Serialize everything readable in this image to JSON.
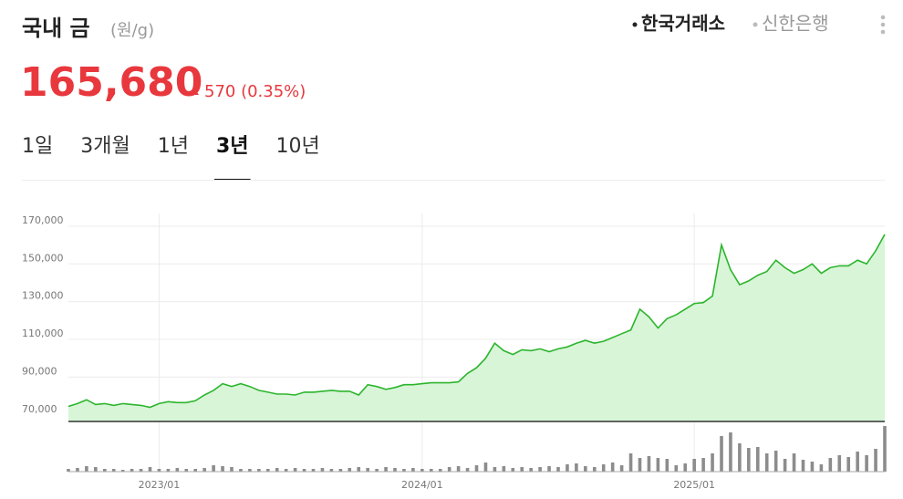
{
  "header": {
    "title": "국내 금",
    "unit": "(원/g)",
    "sources": [
      "한국거래소",
      "신한은행"
    ],
    "active_source": 0,
    "price": "165,680",
    "change": "570 (0.35%)"
  },
  "tabs": {
    "items": [
      "1일",
      "3개월",
      "1년",
      "3년",
      "10년"
    ],
    "selected": 3
  },
  "chart_data": {
    "type": "line",
    "categories": [
      null,
      null,
      null,
      null,
      null,
      null,
      null,
      null,
      null,
      null,
      "2023/01",
      null,
      null,
      null,
      null,
      null,
      null,
      null,
      null,
      null,
      null,
      null,
      null,
      null,
      null,
      null,
      null,
      null,
      null,
      null,
      null,
      null,
      null,
      null,
      null,
      null,
      null,
      null,
      null,
      "2024/01",
      null,
      null,
      null,
      null,
      null,
      null,
      null,
      null,
      null,
      null,
      null,
      null,
      null,
      null,
      null,
      null,
      null,
      null,
      null,
      null,
      null,
      null,
      null,
      null,
      null,
      null,
      null,
      null,
      null,
      "2025/01",
      null,
      null,
      null,
      null,
      null,
      null,
      null,
      null,
      null,
      null,
      null,
      null,
      null,
      null,
      null,
      null,
      null,
      null,
      null,
      null,
      null
    ],
    "series": [
      {
        "color": "#2db52d",
        "fill_color": "#d8f5d8",
        "values": [
          74500,
          76000,
          78000,
          75500,
          76000,
          75000,
          76000,
          75500,
          75000,
          74000,
          76000,
          77000,
          76500,
          76500,
          77500,
          80500,
          83000,
          86500,
          85000,
          86500,
          85000,
          83000,
          82000,
          81000,
          81000,
          80500,
          82000,
          82000,
          82500,
          83000,
          82500,
          82500,
          80500,
          86000,
          85000,
          83500,
          84500,
          86000,
          86000,
          86500,
          87000,
          87000,
          87000,
          87500,
          92000,
          95000,
          100000,
          108000,
          104000,
          102000,
          104500,
          104000,
          105000,
          103500,
          105000,
          106000,
          108000,
          109500,
          108000,
          109000,
          111000,
          113000,
          115000,
          126000,
          122000,
          116000,
          121000,
          123000,
          126000,
          129000,
          129500,
          133000,
          160000,
          147000,
          139000,
          141000,
          144000,
          146000,
          152000,
          148000,
          145000,
          147000,
          150000,
          145000,
          148000,
          149000,
          149000,
          152000,
          150000,
          157000,
          165680
        ]
      },
      {
        "type": "bar",
        "axis": "y2",
        "color": "#8c8c8c",
        "values": [
          6,
          8,
          12,
          10,
          6,
          6,
          4,
          6,
          6,
          10,
          6,
          6,
          8,
          6,
          6,
          8,
          14,
          12,
          10,
          6,
          6,
          6,
          6,
          8,
          6,
          8,
          6,
          6,
          8,
          6,
          6,
          8,
          10,
          8,
          6,
          10,
          8,
          6,
          8,
          6,
          6,
          6,
          10,
          12,
          8,
          14,
          20,
          10,
          12,
          8,
          10,
          8,
          10,
          12,
          10,
          16,
          18,
          12,
          10,
          16,
          20,
          14,
          40,
          30,
          34,
          30,
          28,
          14,
          18,
          28,
          30,
          40,
          78,
          86,
          62,
          52,
          54,
          40,
          46,
          28,
          40,
          26,
          22,
          16,
          30,
          36,
          32,
          44,
          36,
          50,
          100
        ]
      }
    ],
    "ylim": [
      66500,
      176500
    ],
    "yticks": [
      {
        "value": 70000,
        "label": "70,000"
      },
      {
        "value": 90000,
        "label": "90,000"
      },
      {
        "value": 110000,
        "label": "110,000"
      },
      {
        "value": 130000,
        "label": "130,000"
      },
      {
        "value": 150000,
        "label": "150,000"
      },
      {
        "value": 170000,
        "label": "170,000"
      }
    ],
    "y2lim": [
      0,
      100
    ],
    "grid": true
  }
}
